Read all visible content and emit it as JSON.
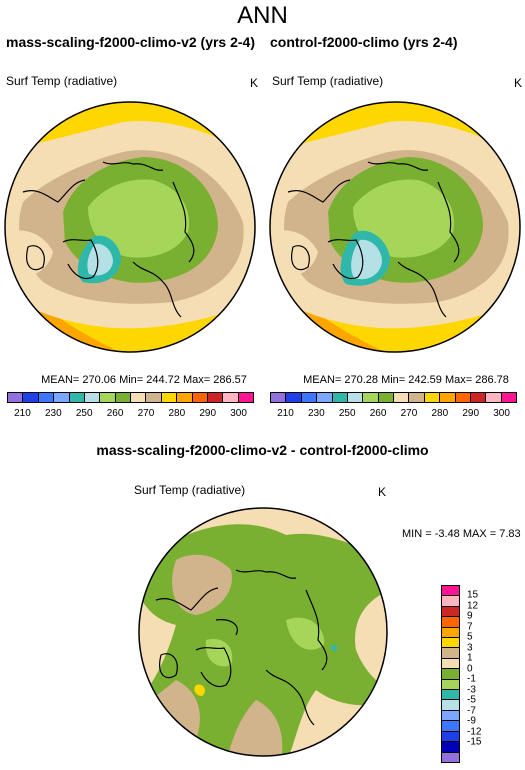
{
  "title": "ANN",
  "panels": [
    {
      "case": "mass-scaling-f2000-climo-v2 (yrs 2-4)",
      "variable": "Surf Temp (radiative)",
      "units": "K",
      "stats": "MEAN= 270.06  Min= 244.72  Max= 286.57"
    },
    {
      "case": "control-f2000-climo (yrs 2-4)",
      "variable": "Surf Temp (radiative)",
      "units": "K",
      "stats": "MEAN= 270.28  Min= 242.59  Max= 286.78"
    }
  ],
  "diff": {
    "title": "mass-scaling-f2000-climo-v2 - control-f2000-climo",
    "variable": "Surf Temp (radiative)",
    "units": "K",
    "stats": "MIN =  -3.48 MAX =   7.83"
  },
  "colors": {
    "abs_scale": [
      "#9370db",
      "#1e40e6",
      "#3c78ff",
      "#7ba7ff",
      "#2fb7a9",
      "#b4e0e6",
      "#a5d65a",
      "#7ab032",
      "#f5deb3",
      "#d2b48c",
      "#ffd700",
      "#ffa500",
      "#ff6600",
      "#cd2626",
      "#ffb6c1",
      "#ff1493"
    ],
    "diff_scale": [
      "#ff1493",
      "#ffb6c1",
      "#cd2626",
      "#ff6600",
      "#ffa500",
      "#ffd700",
      "#d2b48c",
      "#f5deb3",
      "#7ab032",
      "#a5d65a",
      "#2fb7a9",
      "#b4e0e6",
      "#7ba7ff",
      "#3c78ff",
      "#1e40e6",
      "#0000b4",
      "#9370db"
    ]
  },
  "chart_data": [
    {
      "type": "heatmap",
      "title": "mass-scaling-f2000-climo-v2 (yrs 2-4)",
      "variable": "Surf Temp (radiative)",
      "units": "K",
      "projection": "polar stereographic (north pole)",
      "stats": {
        "mean": 270.06,
        "min": 244.72,
        "max": 286.57
      },
      "levels": [
        210,
        220,
        230,
        240,
        250,
        255,
        260,
        265,
        270,
        275,
        280,
        285,
        290,
        295,
        300
      ],
      "tick_labels": [
        "210",
        "230",
        "250",
        "260",
        "270",
        "280",
        "290",
        "300"
      ]
    },
    {
      "type": "heatmap",
      "title": "control-f2000-climo (yrs 2-4)",
      "variable": "Surf Temp (radiative)",
      "units": "K",
      "projection": "polar stereographic (north pole)",
      "stats": {
        "mean": 270.28,
        "min": 242.59,
        "max": 286.78
      },
      "levels": [
        210,
        220,
        230,
        240,
        250,
        255,
        260,
        265,
        270,
        275,
        280,
        285,
        290,
        295,
        300
      ],
      "tick_labels": [
        "210",
        "230",
        "250",
        "260",
        "270",
        "280",
        "290",
        "300"
      ]
    },
    {
      "type": "heatmap",
      "title": "mass-scaling-f2000-climo-v2 - control-f2000-climo",
      "variable": "Surf Temp (radiative)",
      "units": "K",
      "projection": "polar stereographic (north pole)",
      "stats": {
        "min": -3.48,
        "max": 7.83
      },
      "levels": [
        15,
        12,
        9,
        7,
        5,
        3,
        1,
        0,
        -1,
        -3,
        -5,
        -7,
        -9,
        -12,
        -15
      ],
      "tick_labels": [
        "15",
        "12",
        "9",
        "7",
        "5",
        "3",
        "1",
        "0",
        "-1",
        "-3",
        "-5",
        "-7",
        "-9",
        "-12",
        "-15"
      ]
    }
  ]
}
